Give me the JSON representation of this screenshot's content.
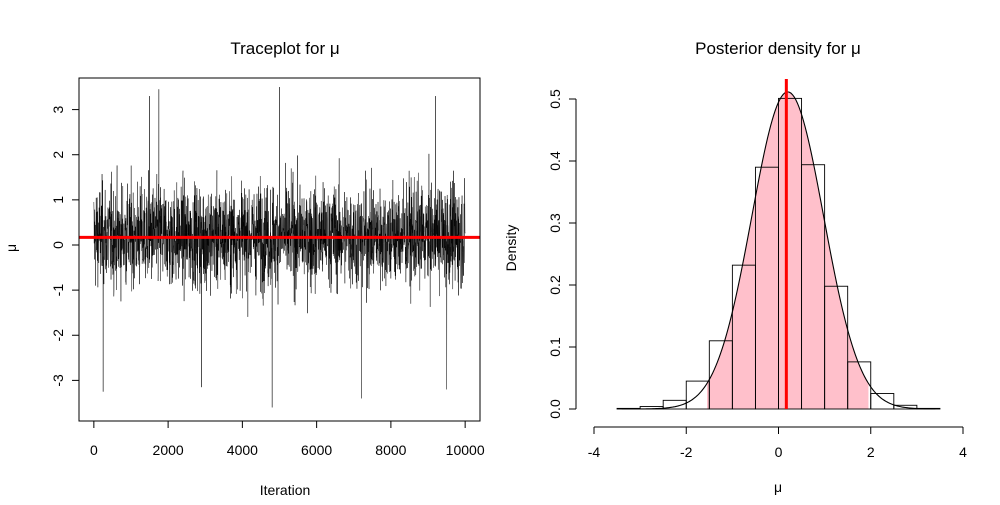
{
  "chart_data": [
    {
      "type": "line",
      "title": "Traceplot for μ",
      "xlabel": "Iteration",
      "ylabel": "μ",
      "xlim": [
        -400,
        10400
      ],
      "ylim": [
        -3.9,
        3.7
      ],
      "xticks": [
        0,
        2000,
        4000,
        6000,
        8000,
        10000
      ],
      "xtick_labels": [
        "0",
        "2000",
        "4000",
        "6000",
        "8000",
        "10000"
      ],
      "yticks": [
        -3,
        -2,
        -1,
        0,
        1,
        2,
        3
      ],
      "ytick_labels": [
        "-3",
        "-2",
        "-1",
        "0",
        "1",
        "2",
        "3"
      ],
      "n_iterations": 10000,
      "series": [
        {
          "note_values": "MCMC samples; values approximately normal around 0.2",
          "extremes": [
            {
              "x": 250,
              "y": -3.25
            },
            {
              "x": 1500,
              "y": 3.3
            },
            {
              "x": 1750,
              "y": 3.45
            },
            {
              "x": 2900,
              "y": -3.15
            },
            {
              "x": 4800,
              "y": -3.6
            },
            {
              "x": 5000,
              "y": 3.5
            },
            {
              "x": 7200,
              "y": -3.4
            },
            {
              "x": 9200,
              "y": 3.3
            },
            {
              "x": 9500,
              "y": -3.2
            }
          ]
        }
      ],
      "reference_line": {
        "y": 0.17,
        "color": "#ff0000"
      },
      "grid": false
    },
    {
      "type": "bar",
      "title": "Posterior density for μ",
      "xlabel": "μ",
      "ylabel": "Density",
      "xlim": [
        -4,
        4
      ],
      "ylim": [
        0,
        0.5
      ],
      "xticks": [
        -4,
        -2,
        0,
        2,
        4
      ],
      "xtick_labels": [
        "-4",
        "-2",
        "0",
        "2",
        "4"
      ],
      "yticks": [
        0.0,
        0.1,
        0.2,
        0.3,
        0.4,
        0.5
      ],
      "ytick_labels": [
        "0.0",
        "0.1",
        "0.2",
        "0.3",
        "0.4",
        "0.5"
      ],
      "histogram": {
        "bin_edges": [
          -3.5,
          -3.0,
          -2.5,
          -2.0,
          -1.5,
          -1.0,
          -0.5,
          0.0,
          0.5,
          1.0,
          1.5,
          2.0,
          2.5,
          3.0,
          3.5
        ],
        "densities": [
          0.001,
          0.004,
          0.014,
          0.045,
          0.11,
          0.232,
          0.39,
          0.501,
          0.394,
          0.198,
          0.076,
          0.025,
          0.006,
          0.001
        ]
      },
      "density_curve": {
        "mean": 0.2,
        "sd": 0.78,
        "x_range": [
          -3.4,
          3.4
        ]
      },
      "shaded_interval": {
        "from": -1.55,
        "to": 1.95,
        "color": "#ffc0cb"
      },
      "reference_line": {
        "x": 0.17,
        "color": "#ff0000"
      },
      "grid": false
    }
  ]
}
